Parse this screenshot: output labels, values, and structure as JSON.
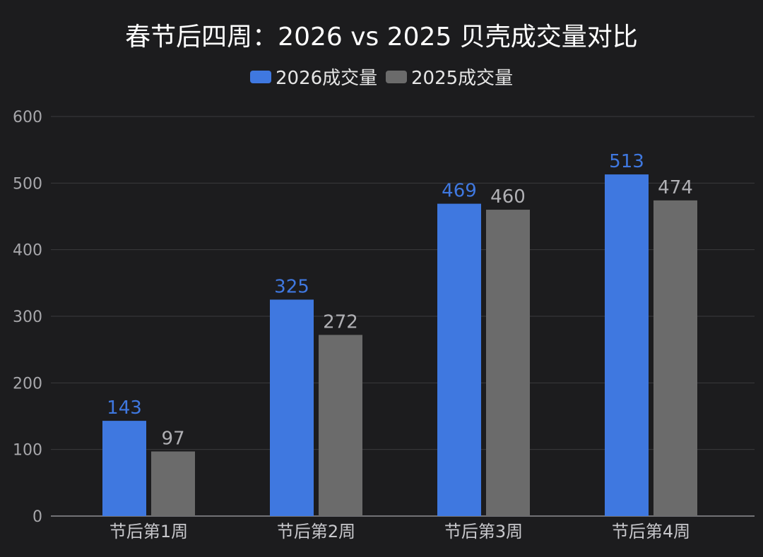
{
  "chart_data": {
    "type": "bar",
    "title": "春节后四周：2026 vs 2025 贝壳成交量对比",
    "xlabel": "",
    "ylabel": "",
    "categories": [
      "节后第1周",
      "节后第2周",
      "节后第3周",
      "节后第4周"
    ],
    "series": [
      {
        "name": "2026成交量",
        "color": "#3f78e0",
        "values": [
          143,
          325,
          469,
          513
        ]
      },
      {
        "name": "2025成交量",
        "color": "#6b6b6b",
        "values": [
          97,
          272,
          460,
          474
        ]
      }
    ],
    "ylim": [
      0,
      600
    ],
    "yticks": [
      0,
      100,
      200,
      300,
      400,
      500,
      600
    ],
    "grid": true,
    "legend_position": "top-center",
    "data_labels": true
  },
  "colors": {
    "background": "#1c1c1e",
    "gridline": "#3a3a3d",
    "axis_text": "#a7a7ab",
    "title_text": "#ffffff"
  }
}
